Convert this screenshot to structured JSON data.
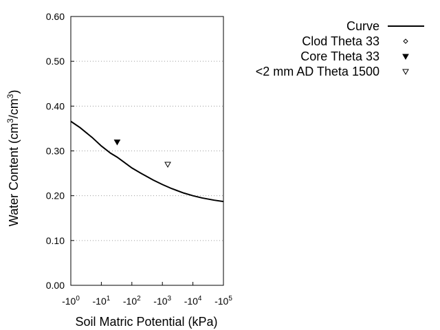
{
  "chart_data": {
    "type": "scatter",
    "xlabel": "Soil Matric Potential (kPa)",
    "ylabel": {
      "prefix": "Water Content (cm",
      "sup1": "3",
      "middle": "/cm",
      "sup2": "3",
      "suffix": ")"
    },
    "x_scale": "log",
    "x_direction": "negative",
    "xlim": [
      1,
      100000
    ],
    "ylim": [
      0.0,
      0.6
    ],
    "grid": "horizontal-dotted",
    "legend_placement": "top-right, outside plot",
    "x_ticks": [
      {
        "value": 1,
        "base": "-10",
        "exp": "0"
      },
      {
        "value": 10,
        "base": "-10",
        "exp": "1"
      },
      {
        "value": 100,
        "base": "-10",
        "exp": "2"
      },
      {
        "value": 1000,
        "base": "-10",
        "exp": "3"
      },
      {
        "value": 10000,
        "base": "-10",
        "exp": "4"
      },
      {
        "value": 100000,
        "base": "-10",
        "exp": "5"
      }
    ],
    "y_ticks": [
      {
        "value": 0.0,
        "label": "0.00"
      },
      {
        "value": 0.1,
        "label": "0.10"
      },
      {
        "value": 0.2,
        "label": "0.20"
      },
      {
        "value": 0.3,
        "label": "0.30"
      },
      {
        "value": 0.4,
        "label": "0.40"
      },
      {
        "value": 0.5,
        "label": "0.50"
      },
      {
        "value": 0.6,
        "label": "0.60"
      }
    ],
    "series": [
      {
        "name": "Curve",
        "kind": "line",
        "color": "#000000",
        "points": [
          {
            "x": 1,
            "y": 0.366
          },
          {
            "x": 2,
            "y": 0.352
          },
          {
            "x": 5,
            "y": 0.33
          },
          {
            "x": 10,
            "y": 0.311
          },
          {
            "x": 20,
            "y": 0.295
          },
          {
            "x": 33,
            "y": 0.286
          },
          {
            "x": 50,
            "y": 0.277
          },
          {
            "x": 100,
            "y": 0.262
          },
          {
            "x": 200,
            "y": 0.25
          },
          {
            "x": 500,
            "y": 0.235
          },
          {
            "x": 1000,
            "y": 0.225
          },
          {
            "x": 2000,
            "y": 0.216
          },
          {
            "x": 5000,
            "y": 0.206
          },
          {
            "x": 10000,
            "y": 0.2
          },
          {
            "x": 20000,
            "y": 0.195
          },
          {
            "x": 50000,
            "y": 0.19
          },
          {
            "x": 100000,
            "y": 0.187
          }
        ]
      },
      {
        "name": "Clod Theta 33",
        "kind": "marker",
        "marker": "diamond-open",
        "points": []
      },
      {
        "name": "Core Theta 33",
        "kind": "marker",
        "marker": "triangle-down-filled",
        "points": [
          {
            "x": 33,
            "y": 0.32
          }
        ]
      },
      {
        "name": "<2 mm AD Theta 1500",
        "kind": "marker",
        "marker": "triangle-down-open",
        "points": [
          {
            "x": 1500,
            "y": 0.27
          }
        ]
      }
    ]
  }
}
